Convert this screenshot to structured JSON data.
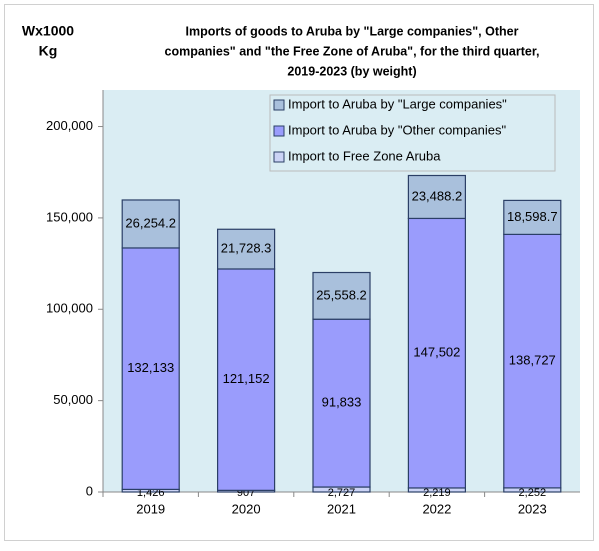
{
  "chart_data": {
    "type": "stacked_bar",
    "title": [
      "Imports of goods to Aruba by \"Large companies\", Other",
      "companies\" and \"the Free Zone of Aruba\", for the third quarter,",
      "2019-2023 (by weight)"
    ],
    "ylabel": [
      "Wx1000",
      "Kg"
    ],
    "categories": [
      "2019",
      "2020",
      "2021",
      "2022",
      "2023"
    ],
    "series": [
      {
        "name": "Import to Aruba by \"Large companies\"",
        "color": "#a9c0dc",
        "values": [
          26254.2,
          21728.3,
          25558.2,
          23488.2,
          18598.7
        ],
        "value_labels": [
          "26,254.2",
          "21,728.3",
          "25,558.2",
          "23,488.2",
          "18,598.7"
        ]
      },
      {
        "name": "Import to Aruba by \"Other companies\"",
        "color": "#9a9cfc",
        "values": [
          132133,
          121152,
          91833,
          147502,
          138727
        ],
        "value_labels": [
          "132,133",
          "121,152",
          "91,833",
          "147,502",
          "138,727"
        ]
      },
      {
        "name": "Import to Free Zone Aruba",
        "color": "#cbd3f5",
        "values": [
          1426,
          907,
          2727,
          2219,
          2252
        ],
        "value_labels": [
          "1,426",
          "907",
          "2,727",
          "2,219",
          "2,252"
        ]
      }
    ],
    "ylim": [
      0,
      220000
    ],
    "yticks": [
      0,
      {
        "value": 50000,
        "label": "50,000"
      },
      {
        "value": 100000,
        "label": "100,000"
      },
      {
        "value": 150000,
        "label": "150,000"
      },
      {
        "value": 200000,
        "label": "200,000"
      }
    ],
    "legend": "top-right"
  }
}
